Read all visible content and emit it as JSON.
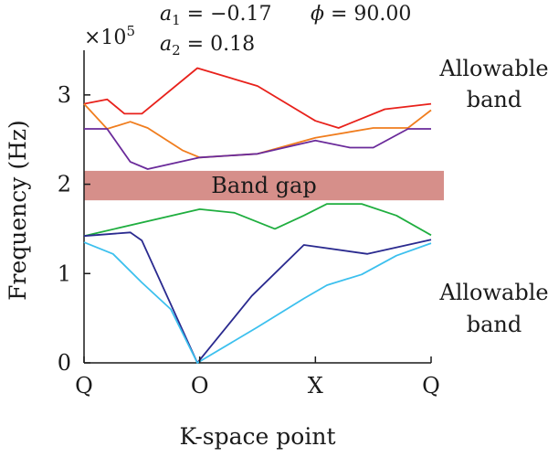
{
  "chart_data": {
    "type": "line",
    "xlabel": "K-space point",
    "ylabel": "Frequency (Hz)",
    "y_multiplier": "×10",
    "y_multiplier_exp": "5",
    "x_ticks": [
      "Q",
      "O",
      "X",
      "Q"
    ],
    "x_range": [
      0,
      3
    ],
    "ylim": [
      0,
      3.5
    ],
    "y_ticks": [
      0,
      1,
      2,
      3
    ],
    "y_tick_labels": [
      "0",
      "1",
      "2",
      "3"
    ],
    "grid": false,
    "params": {
      "a1_label": "a",
      "a1_sub": "1",
      "a1_value": " = −0.17",
      "phi_label": "ϕ",
      "phi_value": " = 90.00",
      "a2_label": "a",
      "a2_sub": "2",
      "a2_value": " = 0.18"
    },
    "band_gap": {
      "label": "Band gap",
      "y_range": [
        1.82,
        2.15
      ],
      "color": "#d68f8a"
    },
    "annotations": {
      "upper_line1": "Allowable",
      "upper_line2": "band",
      "lower_line1": "Allowable",
      "lower_line2": "band"
    },
    "series": [
      {
        "color": "#e8211b",
        "x": [
          0,
          0.2,
          0.35,
          0.5,
          0.98,
          1.5,
          2.0,
          2.2,
          2.6,
          3.0
        ],
        "y": [
          2.9,
          2.95,
          2.79,
          2.79,
          3.3,
          3.1,
          2.71,
          2.63,
          2.84,
          2.9
        ]
      },
      {
        "color": "#f07d1e",
        "x": [
          0,
          0.2,
          0.4,
          0.55,
          0.85,
          1.0,
          1.5,
          2.0,
          2.5,
          2.8,
          3.0
        ],
        "y": [
          2.9,
          2.62,
          2.7,
          2.63,
          2.38,
          2.3,
          2.34,
          2.52,
          2.63,
          2.63,
          2.83
        ]
      },
      {
        "color": "#6a2a9a",
        "x": [
          0,
          0.2,
          0.4,
          0.55,
          1.0,
          1.5,
          2.0,
          2.3,
          2.5,
          2.8,
          3.0
        ],
        "y": [
          2.62,
          2.62,
          2.25,
          2.17,
          2.3,
          2.34,
          2.49,
          2.41,
          2.41,
          2.62,
          2.62
        ]
      },
      {
        "color": "#1fae3f",
        "x": [
          0,
          1.0,
          1.3,
          1.65,
          1.9,
          2.1,
          2.4,
          2.7,
          3.0
        ],
        "y": [
          1.42,
          1.72,
          1.68,
          1.5,
          1.65,
          1.78,
          1.78,
          1.65,
          1.43
        ]
      },
      {
        "color": "#2a2a8f",
        "x": [
          0,
          0.4,
          0.5,
          0.98,
          1.45,
          1.9,
          2.45,
          3.0
        ],
        "y": [
          1.42,
          1.46,
          1.37,
          0.0,
          0.75,
          1.32,
          1.22,
          1.38
        ]
      },
      {
        "color": "#3cc0ee",
        "x": [
          0,
          0.25,
          0.5,
          0.75,
          0.98,
          1.5,
          1.9,
          2.1,
          2.4,
          2.7,
          3.0
        ],
        "y": [
          1.35,
          1.22,
          0.9,
          0.6,
          0.0,
          0.4,
          0.72,
          0.87,
          0.99,
          1.2,
          1.34
        ]
      }
    ]
  }
}
